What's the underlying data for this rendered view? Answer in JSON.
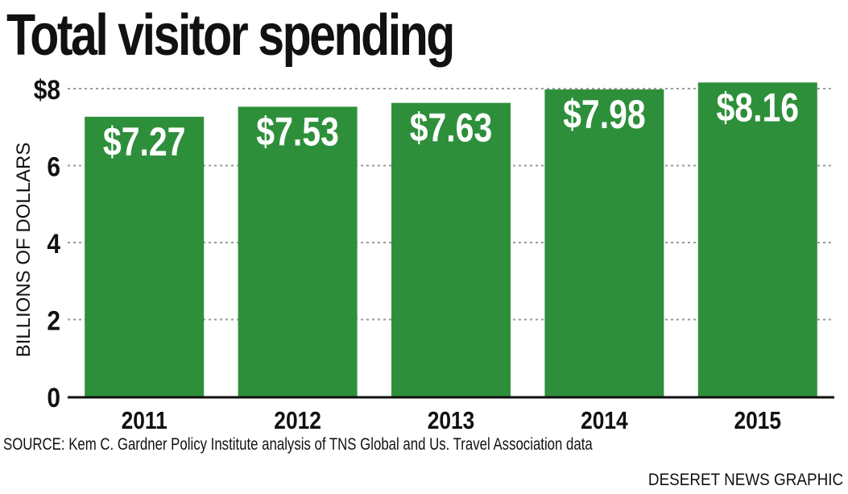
{
  "header": {
    "title": "Total visitor spending"
  },
  "footer": {
    "source": "SOURCE: Kem C. Gardner Policy Institute analysis of TNS Global and Us. Travel Association data",
    "credit": "DESERET NEWS GRAPHIC"
  },
  "colors": {
    "bar": "#2e8f3b",
    "grid": "#9a9a9a",
    "text": "#111111",
    "bar_label": "#ffffff"
  },
  "chart_data": {
    "type": "bar",
    "title": "Total visitor spending",
    "xlabel": "",
    "ylabel": "BILLIONS OF DOLLARS",
    "categories": [
      "2011",
      "2012",
      "2013",
      "2014",
      "2015"
    ],
    "values": [
      7.27,
      7.53,
      7.63,
      7.98,
      8.16
    ],
    "data_labels": [
      "$7.27",
      "$7.53",
      "$7.63",
      "$7.98",
      "$8.16"
    ],
    "ylim": [
      0,
      8.5
    ],
    "yticks": [
      0,
      2,
      4,
      6,
      8
    ],
    "ytick_labels": [
      "0",
      "2",
      "4",
      "6",
      "$8"
    ],
    "grid": true,
    "grid_style": "dotted"
  }
}
